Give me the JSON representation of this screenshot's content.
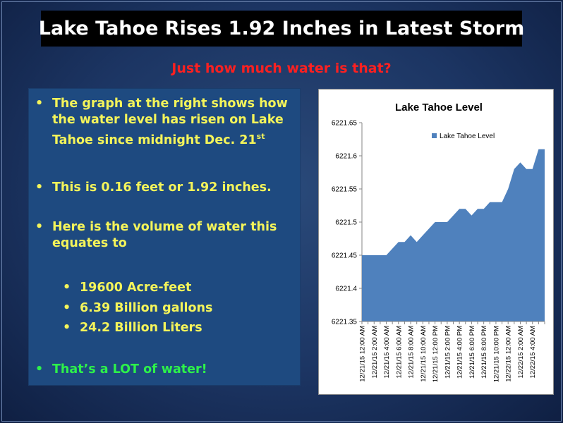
{
  "slide": {
    "title": "Lake Tahoe Rises 1.92 Inches in Latest Storm",
    "subtitle": "Just how much water is that?"
  },
  "bullets": {
    "b1_line1": "The graph at the right shows how",
    "b1_line2": "the water level has risen on Lake",
    "b1_line3": "Tahoe since midnight Dec. 21",
    "b1_sup": "st",
    "b2": "This is 0.16 feet or 1.92 inches.",
    "b3_line1": "Here is the volume of water this",
    "b3_line2": "equates to",
    "subs": [
      "19600 Acre-feet",
      "6.39 Billion gallons",
      "24.2 Billion Liters"
    ],
    "b4": "That’s a LOT of water!"
  },
  "colors": {
    "bullet_text": "#f4f45a",
    "highlight_text": "#2df24a",
    "subtitle": "#ff2020",
    "series": "#4f81bd"
  },
  "chart_data": {
    "type": "area",
    "title": "Lake Tahoe Level",
    "xlabel": "",
    "ylabel": "",
    "ylim": [
      6221.35,
      6221.65
    ],
    "yticks": [
      "6221.65",
      "6221.6",
      "6221.55",
      "6221.5",
      "6221.45",
      "6221.4",
      "6221.35"
    ],
    "legend": "top-left inside plot",
    "grid": false,
    "xtick_labels": [
      "12/21/15 12:00 AM",
      "12/21/15 2:00 AM",
      "12/21/15 4:00 AM",
      "12/21/15 6:00 AM",
      "12/21/15 8:00 AM",
      "12/21/15 10:00 AM",
      "12/21/15 12:00 PM",
      "12/21/15 2:00 PM",
      "12/21/15 4:00 PM",
      "12/21/15 6:00 PM",
      "12/21/15 8:00 PM",
      "12/21/15 10:00 PM",
      "12/22/15 12:00 AM",
      "12/22/15 2:00 AM",
      "12/22/15 4:00 AM"
    ],
    "x_hours": [
      0,
      1,
      2,
      3,
      4,
      5,
      6,
      7,
      8,
      9,
      10,
      11,
      12,
      13,
      14,
      15,
      16,
      17,
      18,
      19,
      20,
      21,
      22,
      23,
      24,
      25,
      26,
      27,
      28,
      29,
      30
    ],
    "series": [
      {
        "name": "Lake Tahoe Level",
        "values": [
          6221.45,
          6221.45,
          6221.45,
          6221.45,
          6221.45,
          6221.46,
          6221.47,
          6221.47,
          6221.48,
          6221.47,
          6221.48,
          6221.49,
          6221.5,
          6221.5,
          6221.5,
          6221.51,
          6221.52,
          6221.52,
          6221.51,
          6221.52,
          6221.52,
          6221.53,
          6221.53,
          6221.53,
          6221.55,
          6221.58,
          6221.59,
          6221.58,
          6221.58,
          6221.61,
          6221.61
        ]
      }
    ]
  }
}
